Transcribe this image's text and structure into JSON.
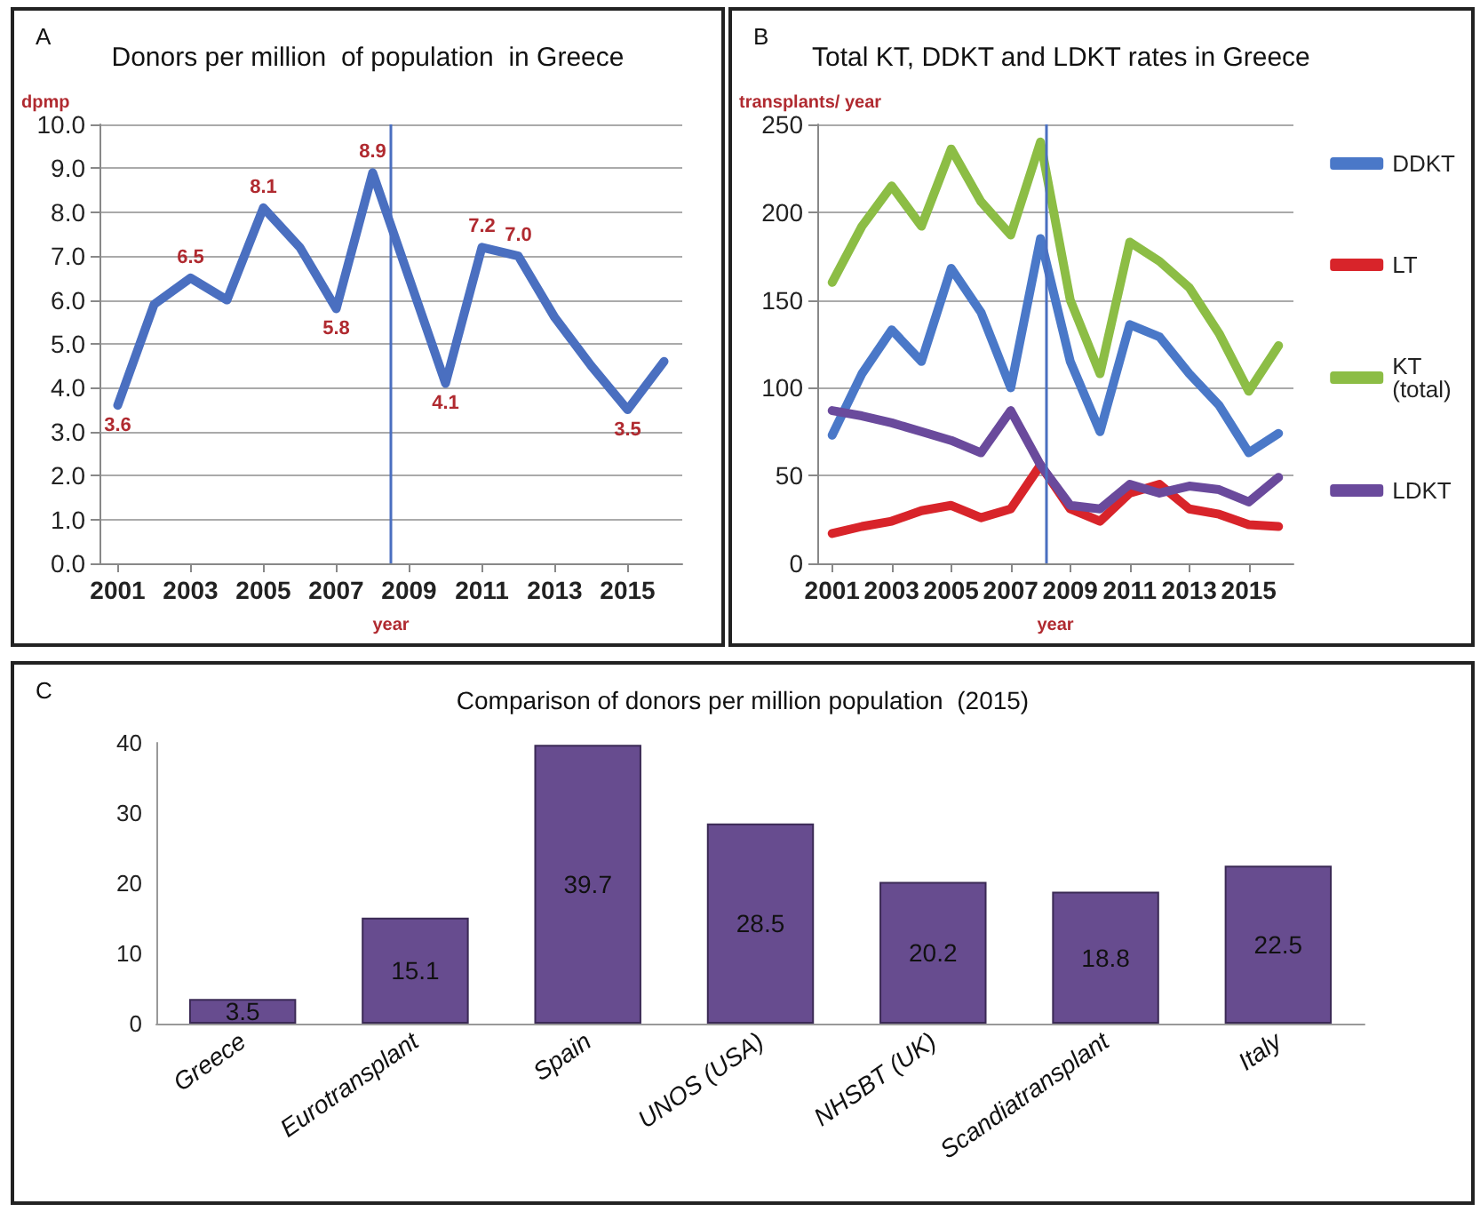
{
  "chart_data": [
    {
      "type": "line",
      "title": "Donors per million  of population  in Greece",
      "annotations": [
        "A"
      ],
      "xlabel": "year",
      "ylabel": "dpmp",
      "x": [
        2001,
        2002,
        2003,
        2004,
        2005,
        2006,
        2007,
        2008,
        2009,
        2010,
        2011,
        2012,
        2013,
        2014,
        2015,
        2016
      ],
      "series": [
        {
          "color": "#4a6fc0",
          "values": [
            3.6,
            5.9,
            6.5,
            6.0,
            8.1,
            7.2,
            5.8,
            8.9,
            6.5,
            4.1,
            7.2,
            7.0,
            5.6,
            4.5,
            3.5,
            4.6
          ],
          "value_labels": [
            "3.6",
            null,
            "6.5",
            null,
            "8.1",
            null,
            "5.8",
            "8.9",
            null,
            "4.1",
            "7.2",
            "7.0",
            null,
            null,
            "3.5",
            null
          ]
        }
      ],
      "xlim": [
        2000.5,
        2016.5
      ],
      "xticks": [
        2001,
        2003,
        2005,
        2007,
        2009,
        2011,
        2013,
        2015
      ],
      "ylim": [
        0,
        10
      ],
      "yticks": [
        {
          "value": 0,
          "label": "0.0"
        },
        {
          "value": 1,
          "label": "1.0"
        },
        {
          "value": 2,
          "label": "2.0"
        },
        {
          "value": 3,
          "label": "3.0"
        },
        {
          "value": 4,
          "label": "4.0"
        },
        {
          "value": 5,
          "label": "5.0"
        },
        {
          "value": 6,
          "label": "6.0"
        },
        {
          "value": 7,
          "label": "7.0"
        },
        {
          "value": 8,
          "label": "8.0"
        },
        {
          "value": 9,
          "label": "9.0"
        },
        {
          "value": 10,
          "label": "10.0"
        }
      ],
      "ref_lines": [
        {
          "axis": "x",
          "value": 2008.5,
          "color": "#4a6fc0"
        }
      ],
      "grid": "y",
      "legend": false,
      "marker": "none",
      "line_style": "solid"
    },
    {
      "type": "line",
      "title": "Total KT, DDKT and LDKT rates in Greece",
      "annotations": [
        "B"
      ],
      "xlabel": "year",
      "ylabel": "transplants/ year",
      "x": [
        2001,
        2002,
        2003,
        2004,
        2005,
        2006,
        2007,
        2008,
        2009,
        2010,
        2011,
        2012,
        2013,
        2014,
        2015,
        2016
      ],
      "series": [
        {
          "name": "DDKT",
          "color": "#4a78c8",
          "values": [
            73,
            108,
            133,
            115,
            168,
            143,
            100,
            185,
            115,
            75,
            136,
            129,
            108,
            90,
            63,
            74
          ]
        },
        {
          "name": "LT",
          "color": "#d8242a",
          "values": [
            17,
            21,
            24,
            30,
            33,
            26,
            31,
            56,
            31,
            24,
            40,
            45,
            31,
            28,
            22,
            21
          ]
        },
        {
          "name": "KT (total)",
          "color": "#8cbd45",
          "values": [
            160,
            192,
            215,
            192,
            236,
            206,
            187,
            240,
            150,
            108,
            183,
            172,
            157,
            131,
            98,
            124
          ]
        },
        {
          "name": "LDKT",
          "color": "#6a4a9c",
          "values": [
            87,
            84,
            80,
            75,
            70,
            63,
            87,
            56,
            33,
            31,
            45,
            40,
            44,
            42,
            35,
            49
          ]
        }
      ],
      "xlim": [
        2000.5,
        2016.5
      ],
      "xticks": [
        2001,
        2003,
        2005,
        2007,
        2009,
        2011,
        2013,
        2015
      ],
      "ylim": [
        0,
        250
      ],
      "yticks": [
        0,
        50,
        100,
        150,
        200,
        250
      ],
      "ref_lines": [
        {
          "axis": "x",
          "value": 2008.2,
          "color": "#4a6fc0"
        }
      ],
      "grid": "y",
      "legend": "right",
      "marker": "none",
      "line_style": "solid"
    },
    {
      "type": "bar",
      "title": "Comparison of donors per million population  (2015)",
      "annotations": [
        "C"
      ],
      "categories": [
        "Greece",
        "Eurotransplant",
        "Spain",
        "UNOS (USA)",
        "NHSBT (UK)",
        "Scandiatransplant",
        "Italy"
      ],
      "values": [
        3.5,
        15.1,
        39.7,
        28.5,
        20.2,
        18.8,
        22.5
      ],
      "color": "#674c8f",
      "ylim": [
        0,
        40
      ],
      "yticks": [
        0,
        10,
        20,
        30,
        40
      ],
      "data_labels": true,
      "grid": false,
      "legend": false
    }
  ]
}
